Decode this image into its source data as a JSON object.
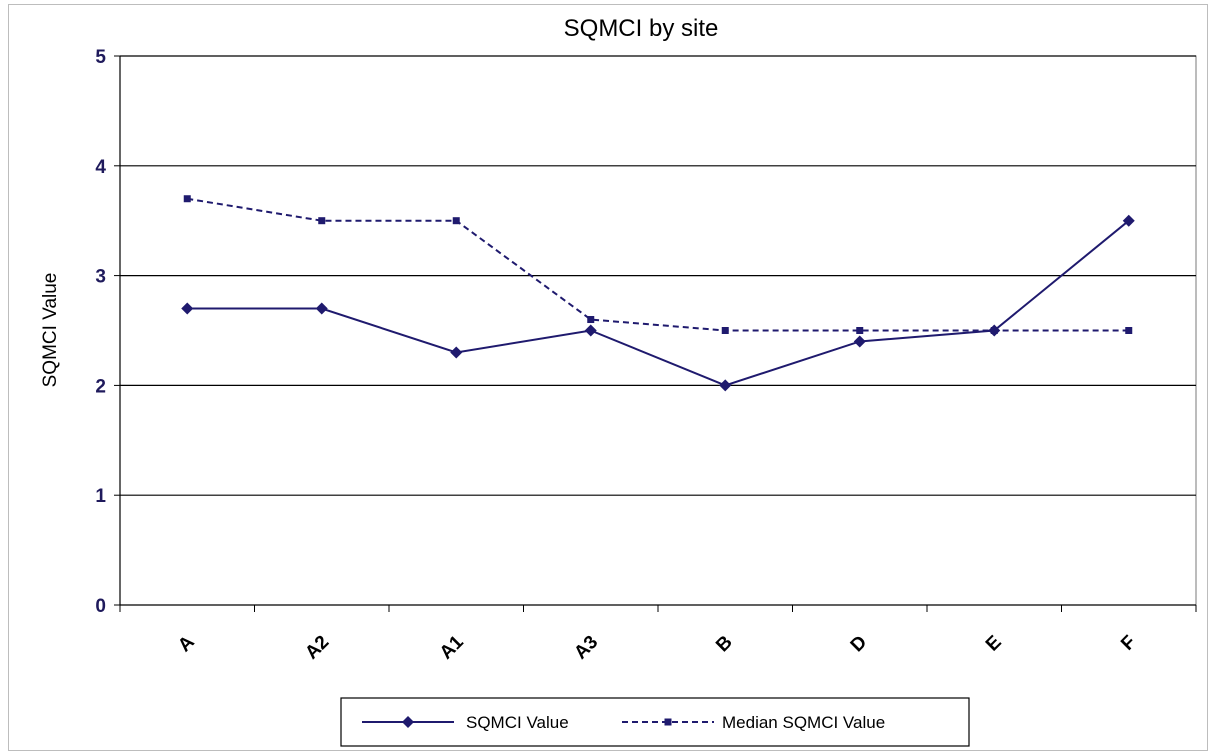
{
  "chart_data": {
    "type": "line",
    "title": "SQMCI by site",
    "xlabel": "",
    "ylabel": "SQMCI Value",
    "ylim": [
      0,
      5
    ],
    "yticks": [
      "0",
      "1",
      "2",
      "3",
      "4",
      "5"
    ],
    "categories": [
      "A",
      "A2",
      "A1",
      "A3",
      "B",
      "D",
      "E",
      "F"
    ],
    "grid": true,
    "legend_position": "bottom",
    "series": [
      {
        "name": "SQMCI Value",
        "values": [
          2.7,
          2.7,
          2.3,
          2.5,
          2.0,
          2.4,
          2.5,
          3.5
        ],
        "color": "#1f1a6e",
        "line_style": "solid",
        "marker": "diamond"
      },
      {
        "name": "Median SQMCI Value",
        "values": [
          3.7,
          3.5,
          3.5,
          2.6,
          2.5,
          2.5,
          2.5,
          2.5
        ],
        "color": "#1f1a6e",
        "line_style": "dashed",
        "marker": "square"
      }
    ]
  }
}
